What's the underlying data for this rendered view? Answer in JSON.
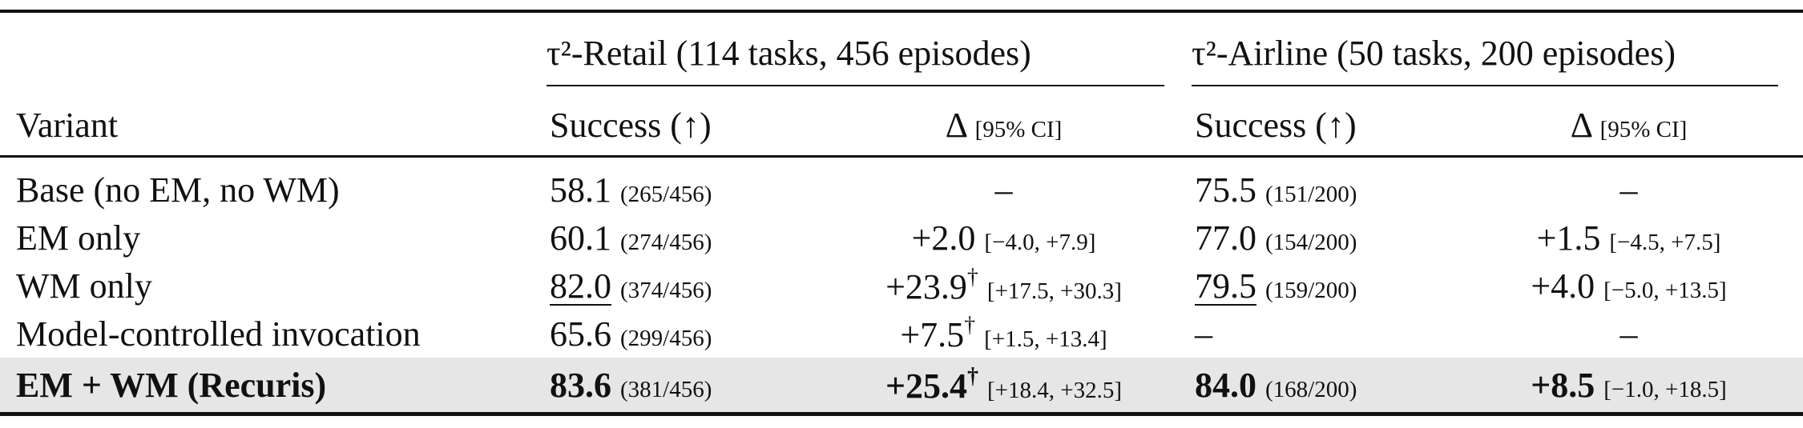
{
  "table": {
    "variant_header": "Variant",
    "groups": [
      {
        "key": "retail",
        "title": "τ²-Retail (114 tasks, 456 episodes)",
        "success_header": "Success (↑)",
        "delta_header": "Δ",
        "ci_header": "[95% CI]"
      },
      {
        "key": "airline",
        "title": "τ²-Airline (50 tasks, 200 episodes)",
        "success_header": "Success (↑)",
        "delta_header": "Δ",
        "ci_header": "[95% CI]"
      }
    ],
    "rows": [
      {
        "variant": "Base (no EM, no WM)",
        "highlight": false,
        "retail": {
          "success": "58.1",
          "underline": false,
          "count": "(265/456)",
          "delta": "–",
          "mark": null,
          "ci": null
        },
        "airline": {
          "success": "75.5",
          "underline": false,
          "count": "(151/200)",
          "delta": "–",
          "mark": null,
          "ci": null
        }
      },
      {
        "variant": "EM only",
        "highlight": false,
        "retail": {
          "success": "60.1",
          "underline": false,
          "count": "(274/456)",
          "delta": "+2.0",
          "mark": null,
          "ci": "[−4.0, +7.9]"
        },
        "airline": {
          "success": "77.0",
          "underline": false,
          "count": "(154/200)",
          "delta": "+1.5",
          "mark": null,
          "ci": "[−4.5, +7.5]"
        }
      },
      {
        "variant": "WM only",
        "highlight": false,
        "retail": {
          "success": "82.0",
          "underline": true,
          "count": "(374/456)",
          "delta": "+23.9",
          "mark": "†",
          "ci": "[+17.5, +30.3]"
        },
        "airline": {
          "success": "79.5",
          "underline": true,
          "count": "(159/200)",
          "delta": "+4.0",
          "mark": null,
          "ci": "[−5.0, +13.5]"
        }
      },
      {
        "variant": "Model-controlled invocation",
        "highlight": false,
        "retail": {
          "success": "65.6",
          "underline": false,
          "count": "(299/456)",
          "delta": "+7.5",
          "mark": "†",
          "ci": "[+1.5, +13.4]"
        },
        "airline": {
          "success": "–",
          "underline": false,
          "count": null,
          "delta": "–",
          "mark": null,
          "ci": null
        }
      },
      {
        "variant": "EM + WM (Recuris)",
        "highlight": true,
        "retail": {
          "success": "83.6",
          "underline": false,
          "count": "(381/456)",
          "delta": "+25.4",
          "mark": "†",
          "ci": "[+18.4, +32.5]"
        },
        "airline": {
          "success": "84.0",
          "underline": false,
          "count": "(168/200)",
          "delta": "+8.5",
          "mark": null,
          "ci": "[−1.0, +18.5]"
        }
      }
    ]
  }
}
